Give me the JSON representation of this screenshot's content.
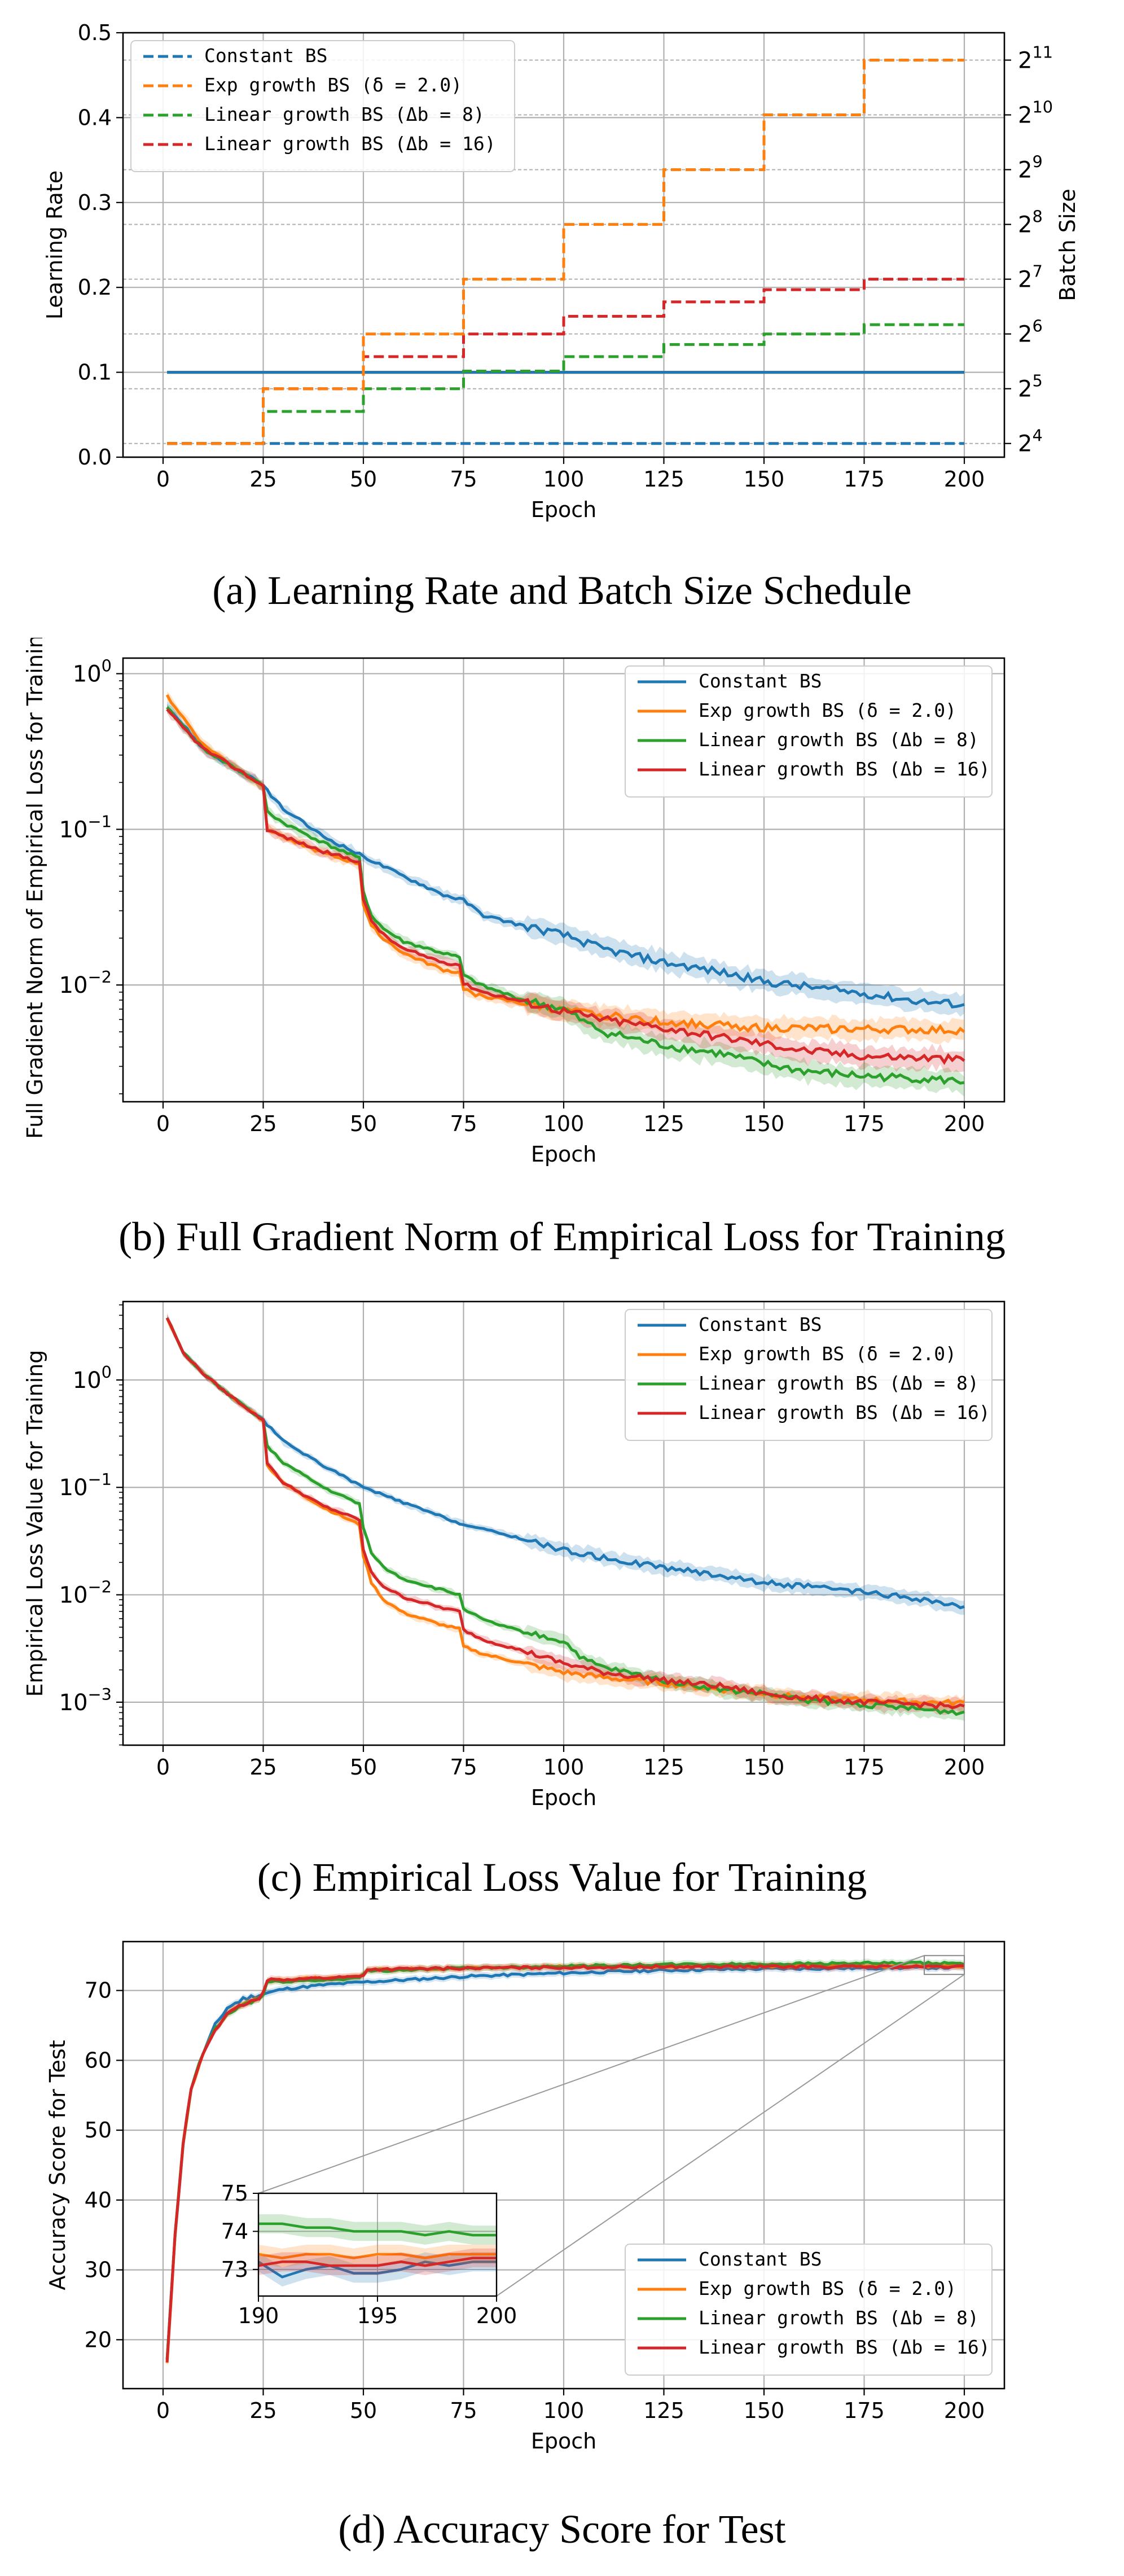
{
  "colors": {
    "constant": "#1f77b4",
    "exp": "#ff7f0e",
    "lin8": "#2ca02c",
    "lin16": "#d62728"
  },
  "chart_data": [
    {
      "id": "a",
      "type": "line",
      "caption": "(a) Learning Rate and Batch Size Schedule",
      "xlabel": "Epoch",
      "ylabel": "Learning Rate",
      "y2label": "Batch Size",
      "xlim": [
        -10,
        210
      ],
      "ylim": [
        0,
        0.5
      ],
      "y2lim_log2": [
        3.75,
        11.5
      ],
      "xticks": [
        0,
        25,
        50,
        75,
        100,
        125,
        150,
        175,
        200
      ],
      "yticks": [
        "0.0",
        "0.1",
        "0.2",
        "0.3",
        "0.4",
        "0.5"
      ],
      "y2ticks": [
        {
          "base": "2",
          "exp": "4"
        },
        {
          "base": "2",
          "exp": "5"
        },
        {
          "base": "2",
          "exp": "6"
        },
        {
          "base": "2",
          "exp": "7"
        },
        {
          "base": "2",
          "exp": "8"
        },
        {
          "base": "2",
          "exp": "9"
        },
        {
          "base": "2",
          "exp": "10"
        },
        {
          "base": "2",
          "exp": "11"
        }
      ],
      "legend": [
        {
          "text": "Constant BS",
          "key": "constant"
        },
        {
          "text": "Exp growth BS (δ = 2.0)",
          "key": "exp"
        },
        {
          "text": "Linear growth BS (Δb = 8)",
          "key": "lin8"
        },
        {
          "text": "Linear growth BS (Δb = 16)",
          "key": "lin16"
        }
      ],
      "legend_loc": "upper-left",
      "learning_rate": 0.1,
      "batch_size_schedule": {
        "epoch_boundaries": [
          1,
          25,
          50,
          75,
          100,
          125,
          150,
          175,
          200
        ],
        "constant": [
          16,
          16,
          16,
          16,
          16,
          16,
          16,
          16
        ],
        "exp": [
          16,
          32,
          64,
          128,
          256,
          512,
          1024,
          2048
        ],
        "lin8": [
          16,
          24,
          32,
          40,
          48,
          56,
          64,
          72
        ],
        "lin16": [
          16,
          32,
          48,
          64,
          80,
          96,
          112,
          128
        ]
      }
    },
    {
      "id": "b",
      "type": "line",
      "yscale": "log",
      "caption": "(b) Full Gradient Norm of Empirical Loss for Training",
      "xlabel": "Epoch",
      "ylabel": "Full Gradient Norm of Empirical Loss for Training",
      "xlim": [
        -10,
        210
      ],
      "ylim_log10": [
        -2.75,
        0.1
      ],
      "xticks": [
        0,
        25,
        50,
        75,
        100,
        125,
        150,
        175,
        200
      ],
      "yticks": [
        {
          "base": "10",
          "exp": "0",
          "v": 0
        },
        {
          "base": "10",
          "exp": "−1",
          "v": -1
        },
        {
          "base": "10",
          "exp": "−2",
          "v": -2
        }
      ],
      "legend": [
        {
          "text": "Constant BS",
          "key": "constant"
        },
        {
          "text": "Exp growth BS (δ = 2.0)",
          "key": "exp"
        },
        {
          "text": "Linear growth BS (Δb = 8)",
          "key": "lin8"
        },
        {
          "text": "Linear growth BS (Δb = 16)",
          "key": "lin16"
        }
      ],
      "legend_loc": "upper-right",
      "series": [
        {
          "key": "constant",
          "x": [
            1,
            10,
            20,
            25,
            30,
            40,
            50,
            60,
            70,
            75,
            80,
            90,
            100,
            110,
            125,
            140,
            150,
            160,
            175,
            190,
            200
          ],
          "y": [
            0.62,
            0.33,
            0.23,
            0.19,
            0.135,
            0.09,
            0.067,
            0.05,
            0.038,
            0.035,
            0.028,
            0.024,
            0.021,
            0.017,
            0.014,
            0.012,
            0.0105,
            0.0098,
            0.0088,
            0.0078,
            0.0075
          ]
        },
        {
          "key": "exp",
          "x": [
            1,
            10,
            20,
            25,
            26,
            30,
            40,
            49,
            50,
            52,
            55,
            60,
            70,
            74,
            75,
            78,
            85,
            100,
            125,
            150,
            175,
            200
          ],
          "y": [
            0.72,
            0.35,
            0.23,
            0.19,
            0.1,
            0.09,
            0.07,
            0.06,
            0.033,
            0.024,
            0.02,
            0.016,
            0.0125,
            0.012,
            0.0095,
            0.0087,
            0.008,
            0.0068,
            0.0058,
            0.0053,
            0.0052,
            0.0051
          ]
        },
        {
          "key": "lin8",
          "x": [
            1,
            10,
            20,
            25,
            26,
            30,
            40,
            49,
            50,
            52,
            55,
            60,
            70,
            74,
            75,
            80,
            90,
            100,
            105,
            110,
            125,
            140,
            150,
            160,
            175,
            190,
            200
          ],
          "y": [
            0.6,
            0.33,
            0.23,
            0.19,
            0.13,
            0.11,
            0.082,
            0.065,
            0.04,
            0.028,
            0.023,
            0.019,
            0.016,
            0.015,
            0.0115,
            0.0098,
            0.008,
            0.007,
            0.0058,
            0.005,
            0.0041,
            0.0036,
            0.0031,
            0.0028,
            0.0026,
            0.0025,
            0.0024
          ]
        },
        {
          "key": "lin16",
          "x": [
            1,
            10,
            20,
            25,
            26,
            30,
            40,
            49,
            50,
            52,
            55,
            60,
            70,
            74,
            75,
            80,
            90,
            100,
            110,
            125,
            140,
            150,
            160,
            175,
            190,
            200
          ],
          "y": [
            0.58,
            0.33,
            0.23,
            0.19,
            0.1,
            0.09,
            0.072,
            0.062,
            0.035,
            0.026,
            0.021,
            0.017,
            0.014,
            0.0135,
            0.0102,
            0.009,
            0.0078,
            0.0068,
            0.006,
            0.0053,
            0.0046,
            0.0042,
            0.0038,
            0.0035,
            0.0034,
            0.0033
          ]
        }
      ]
    },
    {
      "id": "c",
      "type": "line",
      "yscale": "log",
      "caption": "(c) Empirical Loss Value for Training",
      "xlabel": "Epoch",
      "ylabel": "Empirical Loss Value for Training",
      "xlim": [
        -10,
        210
      ],
      "ylim_log10": [
        -3.4,
        0.73
      ],
      "xticks": [
        0,
        25,
        50,
        75,
        100,
        125,
        150,
        175,
        200
      ],
      "yticks": [
        {
          "base": "10",
          "exp": "0",
          "v": 0
        },
        {
          "base": "10",
          "exp": "−1",
          "v": -1
        },
        {
          "base": "10",
          "exp": "−2",
          "v": -2
        },
        {
          "base": "10",
          "exp": "−3",
          "v": -3
        }
      ],
      "legend": [
        {
          "text": "Constant BS",
          "key": "constant"
        },
        {
          "text": "Exp growth BS (δ = 2.0)",
          "key": "exp"
        },
        {
          "text": "Linear growth BS (Δb = 8)",
          "key": "lin8"
        },
        {
          "text": "Linear growth BS (Δb = 16)",
          "key": "lin16"
        }
      ],
      "legend_loc": "upper-right",
      "series": [
        {
          "key": "constant",
          "x": [
            1,
            5,
            10,
            15,
            20,
            25,
            30,
            40,
            50,
            60,
            75,
            90,
            100,
            110,
            125,
            140,
            150,
            160,
            175,
            190,
            200
          ],
          "y": [
            3.8,
            1.8,
            1.15,
            0.8,
            0.58,
            0.42,
            0.27,
            0.16,
            0.1,
            0.072,
            0.045,
            0.033,
            0.026,
            0.022,
            0.018,
            0.015,
            0.013,
            0.012,
            0.0105,
            0.009,
            0.0075
          ]
        },
        {
          "key": "exp",
          "x": [
            1,
            5,
            10,
            15,
            20,
            25,
            26,
            30,
            40,
            49,
            50,
            52,
            55,
            60,
            70,
            74,
            75,
            80,
            90,
            100,
            110,
            125,
            140,
            150,
            160,
            175,
            190,
            200
          ],
          "y": [
            3.8,
            1.8,
            1.15,
            0.8,
            0.58,
            0.42,
            0.16,
            0.11,
            0.065,
            0.045,
            0.023,
            0.013,
            0.009,
            0.0068,
            0.0052,
            0.0048,
            0.0033,
            0.0028,
            0.0023,
            0.0019,
            0.0017,
            0.0015,
            0.0013,
            0.0012,
            0.0011,
            0.00105,
            0.001,
            0.00098
          ]
        },
        {
          "key": "lin8",
          "x": [
            1,
            5,
            10,
            15,
            20,
            25,
            26,
            30,
            40,
            49,
            50,
            52,
            55,
            60,
            70,
            74,
            75,
            80,
            90,
            100,
            105,
            110,
            125,
            140,
            150,
            160,
            175,
            190,
            200
          ],
          "y": [
            3.8,
            1.8,
            1.15,
            0.8,
            0.58,
            0.42,
            0.24,
            0.17,
            0.1,
            0.07,
            0.042,
            0.025,
            0.018,
            0.014,
            0.011,
            0.01,
            0.0075,
            0.0058,
            0.0045,
            0.0037,
            0.0025,
            0.0021,
            0.0016,
            0.0013,
            0.0012,
            0.00105,
            0.00095,
            0.00085,
            0.0008
          ]
        },
        {
          "key": "lin16",
          "x": [
            1,
            5,
            10,
            15,
            20,
            25,
            26,
            30,
            40,
            49,
            50,
            52,
            55,
            60,
            70,
            74,
            75,
            80,
            90,
            100,
            110,
            125,
            140,
            150,
            160,
            175,
            190,
            200
          ],
          "y": [
            3.8,
            1.8,
            1.15,
            0.8,
            0.58,
            0.42,
            0.17,
            0.11,
            0.067,
            0.05,
            0.026,
            0.016,
            0.012,
            0.0095,
            0.0075,
            0.007,
            0.0047,
            0.0038,
            0.003,
            0.0023,
            0.0019,
            0.0016,
            0.0014,
            0.0012,
            0.0011,
            0.001,
            0.00095,
            0.0009
          ]
        }
      ]
    },
    {
      "id": "d",
      "type": "line",
      "caption": "(d) Accuracy Score for Test",
      "xlabel": "Epoch",
      "ylabel": "Accuracy Score for Test",
      "xlim": [
        -10,
        210
      ],
      "ylim": [
        13,
        77
      ],
      "xticks": [
        0,
        25,
        50,
        75,
        100,
        125,
        150,
        175,
        200
      ],
      "yticks": [
        20,
        30,
        40,
        50,
        60,
        70
      ],
      "legend": [
        {
          "text": "Constant BS",
          "key": "constant"
        },
        {
          "text": "Exp growth BS (δ = 2.0)",
          "key": "exp"
        },
        {
          "text": "Linear growth BS (Δb = 8)",
          "key": "lin8"
        },
        {
          "text": "Linear growth BS (Δb = 16)",
          "key": "lin16"
        }
      ],
      "legend_loc": "lower-right",
      "series": [
        {
          "key": "constant",
          "x": [
            1,
            3,
            5,
            7,
            10,
            13,
            16,
            20,
            25,
            30,
            40,
            50,
            60,
            75,
            100,
            125,
            150,
            175,
            200
          ],
          "y": [
            17,
            35,
            48,
            56,
            61,
            65,
            67.5,
            68.8,
            69.5,
            70.2,
            70.8,
            71.2,
            71.5,
            72,
            72.5,
            72.9,
            73.1,
            73.2,
            73.3
          ]
        },
        {
          "key": "exp",
          "x": [
            1,
            3,
            5,
            7,
            10,
            13,
            16,
            20,
            24,
            25,
            26,
            40,
            49,
            50,
            51,
            75,
            100,
            125,
            150,
            175,
            200
          ],
          "y": [
            16.5,
            35,
            48,
            56,
            61,
            64.5,
            66.5,
            68,
            68.8,
            69.5,
            71.5,
            71.8,
            72,
            72.3,
            73,
            73.2,
            73.4,
            73.5,
            73.5,
            73.5,
            73.5
          ]
        },
        {
          "key": "lin8",
          "x": [
            1,
            3,
            5,
            7,
            10,
            13,
            16,
            20,
            24,
            25,
            26,
            40,
            49,
            50,
            51,
            75,
            100,
            125,
            150,
            175,
            200
          ],
          "y": [
            17,
            35,
            48,
            56,
            61,
            64.5,
            66.5,
            68,
            68.8,
            69.4,
            71.2,
            71.5,
            71.8,
            72.2,
            72.8,
            73.2,
            73.5,
            73.7,
            73.8,
            73.9,
            73.9
          ]
        },
        {
          "key": "lin16",
          "x": [
            1,
            3,
            5,
            7,
            10,
            13,
            16,
            20,
            24,
            25,
            26,
            40,
            49,
            50,
            51,
            75,
            100,
            125,
            150,
            175,
            200
          ],
          "y": [
            16.5,
            35,
            48,
            56,
            61,
            64.5,
            66.5,
            68,
            68.8,
            69.5,
            71.5,
            71.8,
            72,
            72.3,
            73,
            73.2,
            73.3,
            73.4,
            73.4,
            73.4,
            73.4
          ]
        }
      ],
      "inset": {
        "xlim": [
          190,
          200
        ],
        "ylim": [
          72.3,
          75
        ],
        "xticks": [
          190,
          195,
          200
        ],
        "yticks": [
          73,
          74,
          75
        ],
        "series": [
          {
            "key": "constant",
            "x": [
              190,
              191,
              192,
              193,
              194,
              195,
              196,
              197,
              198,
              199,
              200
            ],
            "y": [
              73.2,
              72.8,
              73.0,
              73.1,
              72.9,
              72.9,
              73.0,
              73.2,
              73.1,
              73.2,
              73.2
            ]
          },
          {
            "key": "exp",
            "x": [
              190,
              191,
              192,
              193,
              194,
              195,
              196,
              197,
              198,
              199,
              200
            ],
            "y": [
              73.4,
              73.3,
              73.4,
              73.4,
              73.3,
              73.4,
              73.4,
              73.3,
              73.4,
              73.4,
              73.4
            ]
          },
          {
            "key": "lin8",
            "x": [
              190,
              191,
              192,
              193,
              194,
              195,
              196,
              197,
              198,
              199,
              200
            ],
            "y": [
              74.2,
              74.2,
              74.1,
              74.1,
              74.0,
              74.0,
              74.0,
              73.9,
              74.0,
              73.9,
              73.9
            ]
          },
          {
            "key": "lin16",
            "x": [
              190,
              191,
              192,
              193,
              194,
              195,
              196,
              197,
              198,
              199,
              200
            ],
            "y": [
              73.1,
              73.2,
              73.2,
              73.1,
              73.1,
              73.1,
              73.2,
              73.1,
              73.2,
              73.3,
              73.3
            ]
          }
        ]
      }
    }
  ]
}
